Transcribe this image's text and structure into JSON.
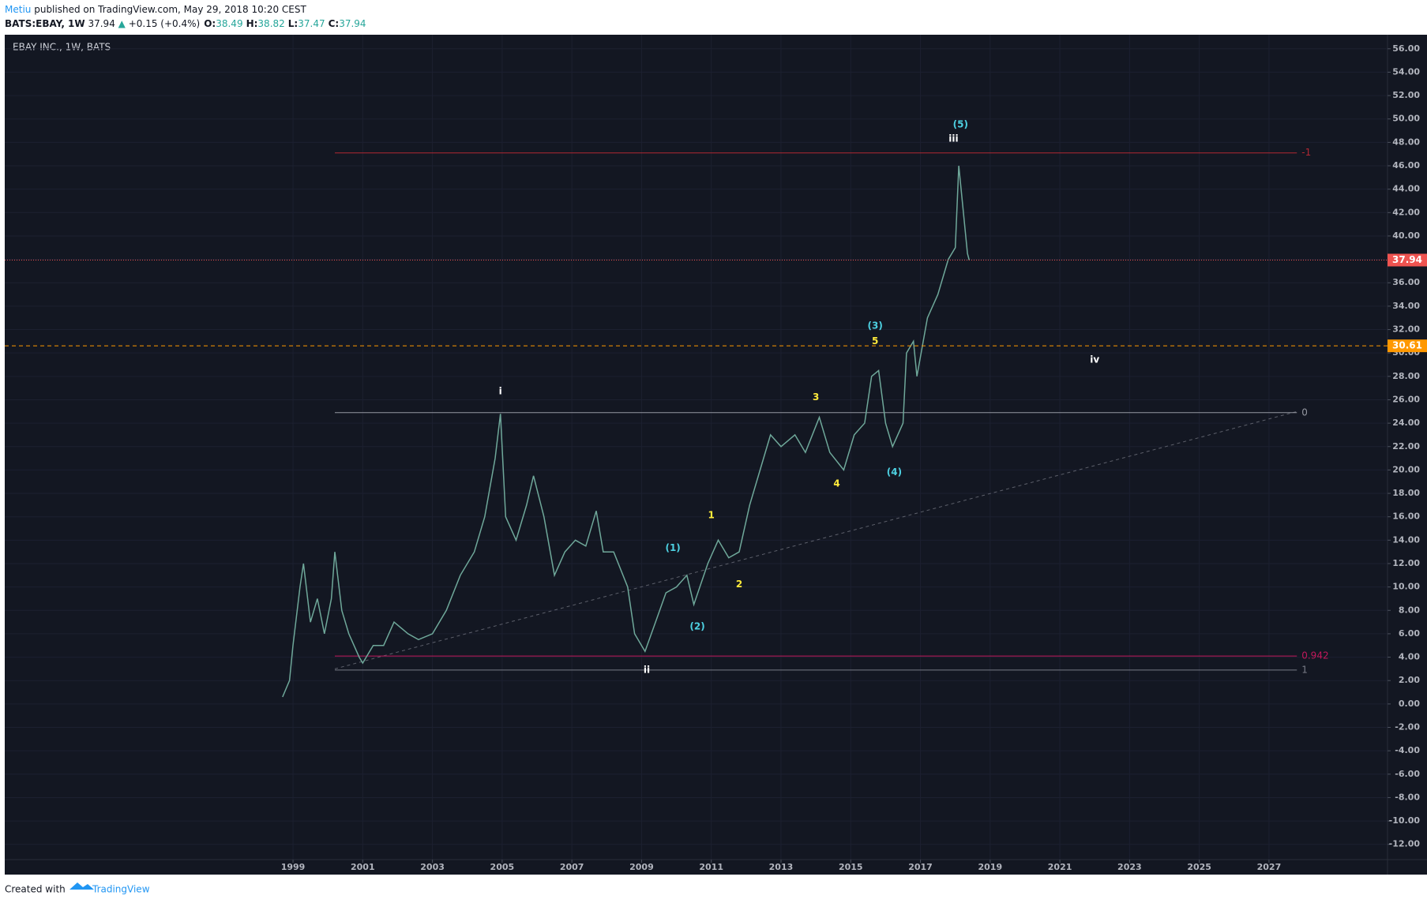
{
  "header": {
    "author": "Metiu",
    "published": "published on TradingView.com, May 29, 2018 10:20 CEST",
    "symbol": "BATS:EBAY, 1W",
    "last": "37.94",
    "arrow": "▲",
    "change": "+0.15 (+0.4%)",
    "ohlc": [
      [
        "O:",
        "38.49"
      ],
      [
        "H:",
        "38.82"
      ],
      [
        "L:",
        "37.47"
      ],
      [
        "C:",
        "37.94"
      ]
    ]
  },
  "footer": {
    "created": "Created with",
    "brand": "TradingView"
  },
  "chart_data": {
    "type": "line",
    "title": "EBAY INC., 1W, BATS",
    "series": [
      {
        "name": "EBAY",
        "color": "#6fa89a",
        "x": [
          1998.7,
          1998.9,
          1999.0,
          1999.2,
          1999.3,
          1999.5,
          1999.7,
          1999.9,
          2000.1,
          2000.2,
          2000.4,
          2000.6,
          2000.9,
          2001.0,
          2001.3,
          2001.6,
          2001.9,
          2002.3,
          2002.6,
          2003.0,
          2003.4,
          2003.8,
          2004.2,
          2004.5,
          2004.8,
          2004.95,
          2005.1,
          2005.4,
          2005.7,
          2005.9,
          2006.2,
          2006.5,
          2006.8,
          2007.1,
          2007.4,
          2007.7,
          2007.9,
          2008.2,
          2008.6,
          2008.8,
          2009.1,
          2009.4,
          2009.7,
          2010.0,
          2010.3,
          2010.5,
          2010.9,
          2011.2,
          2011.5,
          2011.8,
          2012.1,
          2012.4,
          2012.7,
          2013.0,
          2013.4,
          2013.7,
          2014.1,
          2014.4,
          2014.8,
          2015.1,
          2015.4,
          2015.6,
          2015.8,
          2016.0,
          2016.2,
          2016.5,
          2016.6,
          2016.8,
          2016.9,
          2017.2,
          2017.5,
          2017.8,
          2018.0,
          2018.1,
          2018.2,
          2018.35,
          2018.4
        ],
        "values": [
          0.6,
          2,
          5,
          10,
          12,
          7,
          9,
          6,
          9,
          13,
          8,
          6,
          4,
          3.5,
          5,
          5,
          7,
          6,
          5.5,
          6,
          8,
          11,
          13,
          16,
          21,
          24.8,
          16,
          14,
          17,
          19.5,
          16,
          11,
          13,
          14,
          13.5,
          16.5,
          13,
          13,
          10,
          6,
          4.5,
          7,
          9.5,
          10,
          11,
          8.5,
          12,
          14,
          12.5,
          13,
          17,
          20,
          23,
          22,
          23,
          21.5,
          24.5,
          21.5,
          20,
          23,
          24,
          28,
          28.5,
          24,
          22,
          24,
          30,
          31,
          28,
          33,
          35,
          38,
          39,
          46,
          43,
          38.5,
          37.94
        ]
      }
    ],
    "xlim": [
      1990.73,
      2030.4
    ],
    "xticks": [
      1999,
      2001,
      2003,
      2005,
      2007,
      2009,
      2011,
      2013,
      2015,
      2017,
      2019,
      2021,
      2023,
      2025,
      2027
    ],
    "ylim": [
      -13.3,
      57.2
    ],
    "yticks": [
      {
        "value": 56,
        "label": "56.00"
      },
      {
        "value": 54,
        "label": "54.00"
      },
      {
        "value": 52,
        "label": "52.00"
      },
      {
        "value": 50,
        "label": "50.00"
      },
      {
        "value": 48,
        "label": "48.00"
      },
      {
        "value": 46,
        "label": "46.00"
      },
      {
        "value": 44,
        "label": "44.00"
      },
      {
        "value": 42,
        "label": "42.00"
      },
      {
        "value": 40,
        "label": "40.00"
      },
      {
        "value": 38,
        "label": "38.00"
      },
      {
        "value": 36,
        "label": "36.00"
      },
      {
        "value": 34,
        "label": "34.00"
      },
      {
        "value": 32,
        "label": "32.00"
      },
      {
        "value": 30,
        "label": "30.00"
      },
      {
        "value": 28,
        "label": "28.00"
      },
      {
        "value": 26,
        "label": "26.00"
      },
      {
        "value": 24,
        "label": "24.00"
      },
      {
        "value": 22,
        "label": "22.00"
      },
      {
        "value": 20,
        "label": "20.00"
      },
      {
        "value": 18,
        "label": "18.00"
      },
      {
        "value": 16,
        "label": "16.00"
      },
      {
        "value": 14,
        "label": "14.00"
      },
      {
        "value": 12,
        "label": "12.00"
      },
      {
        "value": 10,
        "label": "10.00"
      },
      {
        "value": 8,
        "label": "8.00"
      },
      {
        "value": 6,
        "label": "6.00"
      },
      {
        "value": 4,
        "label": "4.00"
      },
      {
        "value": 2,
        "label": "2.00"
      },
      {
        "value": 0,
        "label": "0.00"
      },
      {
        "value": -2,
        "label": "-2.00"
      },
      {
        "value": -4,
        "label": "-4.00"
      },
      {
        "value": -6,
        "label": "-6.00"
      },
      {
        "value": -8,
        "label": "-8.00"
      },
      {
        "value": -10,
        "label": "-10.00"
      },
      {
        "value": -12,
        "label": "-12.00"
      }
    ],
    "grid": true,
    "levels_x": [
      2000.2,
      2027.8
    ],
    "levels": [
      {
        "value": 47.1,
        "label": "-1",
        "color": "#b22833"
      },
      {
        "value": 24.9,
        "label": "0",
        "color": "#9598a1"
      },
      {
        "value": 4.1,
        "label": "0.942",
        "color": "#c2185b"
      },
      {
        "value": 2.9,
        "label": "1",
        "color": "#787b86"
      }
    ],
    "price_lines": [
      {
        "value": 37.94,
        "color": "#ef5350",
        "style": "dotted"
      },
      {
        "value": 30.61,
        "color": "#ff9800",
        "style": "dashed"
      }
    ],
    "trendline": {
      "x": [
        2000.2,
        2027.8
      ],
      "y": [
        3,
        25
      ],
      "color": "#5d606b"
    },
    "annotations": [
      {
        "text": "i",
        "x": 2004.95,
        "y": 26.7,
        "color": "#ffffff"
      },
      {
        "text": "ii",
        "x": 2009.15,
        "y": 2.9,
        "color": "#ffffff"
      },
      {
        "text": "iii",
        "x": 2017.95,
        "y": 48.3,
        "color": "#ffffff"
      },
      {
        "text": "iv",
        "x": 2022.0,
        "y": 29.4,
        "color": "#ffffff"
      },
      {
        "text": "(5)",
        "x": 2018.15,
        "y": 49.5,
        "color": "#4dd0e1"
      },
      {
        "text": "(1)",
        "x": 2009.9,
        "y": 13.3,
        "color": "#4dd0e1"
      },
      {
        "text": "(2)",
        "x": 2010.6,
        "y": 6.6,
        "color": "#4dd0e1"
      },
      {
        "text": "(3)",
        "x": 2015.7,
        "y": 32.3,
        "color": "#4dd0e1"
      },
      {
        "text": "(4)",
        "x": 2016.25,
        "y": 19.8,
        "color": "#4dd0e1"
      },
      {
        "text": "1",
        "x": 2011.0,
        "y": 16.1,
        "color": "#ffeb3b"
      },
      {
        "text": "2",
        "x": 2011.8,
        "y": 10.2,
        "color": "#ffeb3b"
      },
      {
        "text": "3",
        "x": 2014.0,
        "y": 26.2,
        "color": "#ffeb3b"
      },
      {
        "text": "4",
        "x": 2014.6,
        "y": 18.8,
        "color": "#ffeb3b"
      },
      {
        "text": "5",
        "x": 2015.7,
        "y": 31.0,
        "color": "#ffeb3b"
      }
    ]
  }
}
